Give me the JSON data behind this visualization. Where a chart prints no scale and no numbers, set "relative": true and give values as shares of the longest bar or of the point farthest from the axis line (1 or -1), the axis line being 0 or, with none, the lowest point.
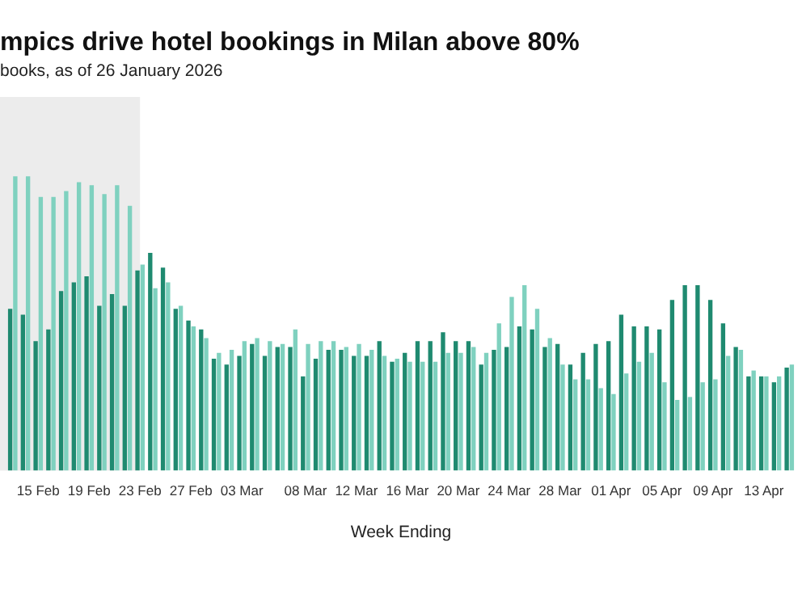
{
  "chart_data": {
    "type": "bar",
    "title": "mpics drive hotel bookings in Milan above 80%",
    "subtitle": "books, as of 26 January 2026",
    "xlabel": "Week Ending",
    "relative": true,
    "grid": false,
    "legend": false,
    "x": [
      "--02-13",
      "--02-14",
      "--02-15",
      "--02-16",
      "--02-17",
      "--02-18",
      "--02-19",
      "--02-20",
      "--02-21",
      "--02-22",
      "--02-23",
      "--02-24",
      "--02-25",
      "--02-26",
      "--02-27",
      "--02-28",
      "--03-01",
      "--03-02",
      "--03-03",
      "--03-04",
      "--03-05",
      "--03-06",
      "--03-07",
      "--03-08",
      "--03-09",
      "--03-10",
      "--03-11",
      "--03-12",
      "--03-13",
      "--03-14",
      "--03-15",
      "--03-16",
      "--03-17",
      "--03-18",
      "--03-19",
      "--03-20",
      "--03-21",
      "--03-22",
      "--03-23",
      "--03-24",
      "--03-25",
      "--03-26",
      "--03-27",
      "--03-28",
      "--03-29",
      "--03-30",
      "--03-31",
      "--04-01",
      "--04-02",
      "--04-03",
      "--04-04",
      "--04-05",
      "--04-06",
      "--04-07",
      "--04-08",
      "--04-09",
      "--04-10",
      "--04-11",
      "--04-12",
      "--04-13",
      "--04-14",
      "--04-15"
    ],
    "xlim": [
      "--02-12",
      "--04-16"
    ],
    "xticks": [
      {
        "value": "--02-15",
        "label": "15 Feb"
      },
      {
        "value": "--02-19",
        "label": "19 Feb"
      },
      {
        "value": "--02-23",
        "label": "23 Feb"
      },
      {
        "value": "--02-27",
        "label": "27 Feb"
      },
      {
        "value": "--03-03",
        "label": "03 Mar"
      },
      {
        "value": "--03-08",
        "label": "08 Mar"
      },
      {
        "value": "--03-12",
        "label": "12 Mar"
      },
      {
        "value": "--03-16",
        "label": "16 Mar"
      },
      {
        "value": "--03-20",
        "label": "20 Mar"
      },
      {
        "value": "--03-24",
        "label": "24 Mar"
      },
      {
        "value": "--03-28",
        "label": "28 Mar"
      },
      {
        "value": "--04-01",
        "label": "01 Apr"
      },
      {
        "value": "--04-05",
        "label": "05 Apr"
      },
      {
        "value": "--04-09",
        "label": "09 Apr"
      },
      {
        "value": "--04-13",
        "label": "13 Apr"
      }
    ],
    "bands": [
      {
        "axis": "x",
        "from": "--02-12",
        "to": "--02-23",
        "color": "#ececec"
      }
    ],
    "series": [
      {
        "color": "#1f8a70",
        "values": [
          0.55,
          0.53,
          0.44,
          0.48,
          0.61,
          0.64,
          0.66,
          0.56,
          0.6,
          0.56,
          0.68,
          0.74,
          0.69,
          0.55,
          0.51,
          0.48,
          0.38,
          0.36,
          0.39,
          0.43,
          0.39,
          0.42,
          0.42,
          0.32,
          0.38,
          0.41,
          0.41,
          0.39,
          0.39,
          0.44,
          0.37,
          0.4,
          0.44,
          0.44,
          0.47,
          0.44,
          0.44,
          0.36,
          0.41,
          0.42,
          0.49,
          0.48,
          0.42,
          0.43,
          0.36,
          0.4,
          0.43,
          0.44,
          0.53,
          0.49,
          0.49,
          0.48,
          0.58,
          0.63,
          0.63,
          0.58,
          0.5,
          0.42,
          0.32,
          0.32,
          0.3,
          0.35
        ]
      },
      {
        "color": "#7fd1bf",
        "values": [
          1,
          1,
          0.93,
          0.93,
          0.95,
          0.98,
          0.97,
          0.94,
          0.97,
          0.9,
          0.7,
          0.62,
          0.64,
          0.56,
          0.49,
          0.45,
          0.4,
          0.41,
          0.44,
          0.45,
          0.44,
          0.43,
          0.48,
          0.43,
          0.44,
          0.44,
          0.42,
          0.43,
          0.41,
          0.39,
          0.38,
          0.37,
          0.37,
          0.37,
          0.4,
          0.4,
          0.42,
          0.4,
          0.5,
          0.59,
          0.63,
          0.55,
          0.45,
          0.36,
          0.31,
          0.31,
          0.28,
          0.26,
          0.33,
          0.37,
          0.4,
          0.3,
          0.24,
          0.25,
          0.3,
          0.31,
          0.39,
          0.41,
          0.34,
          0.32,
          0.32,
          0.36
        ]
      }
    ]
  }
}
